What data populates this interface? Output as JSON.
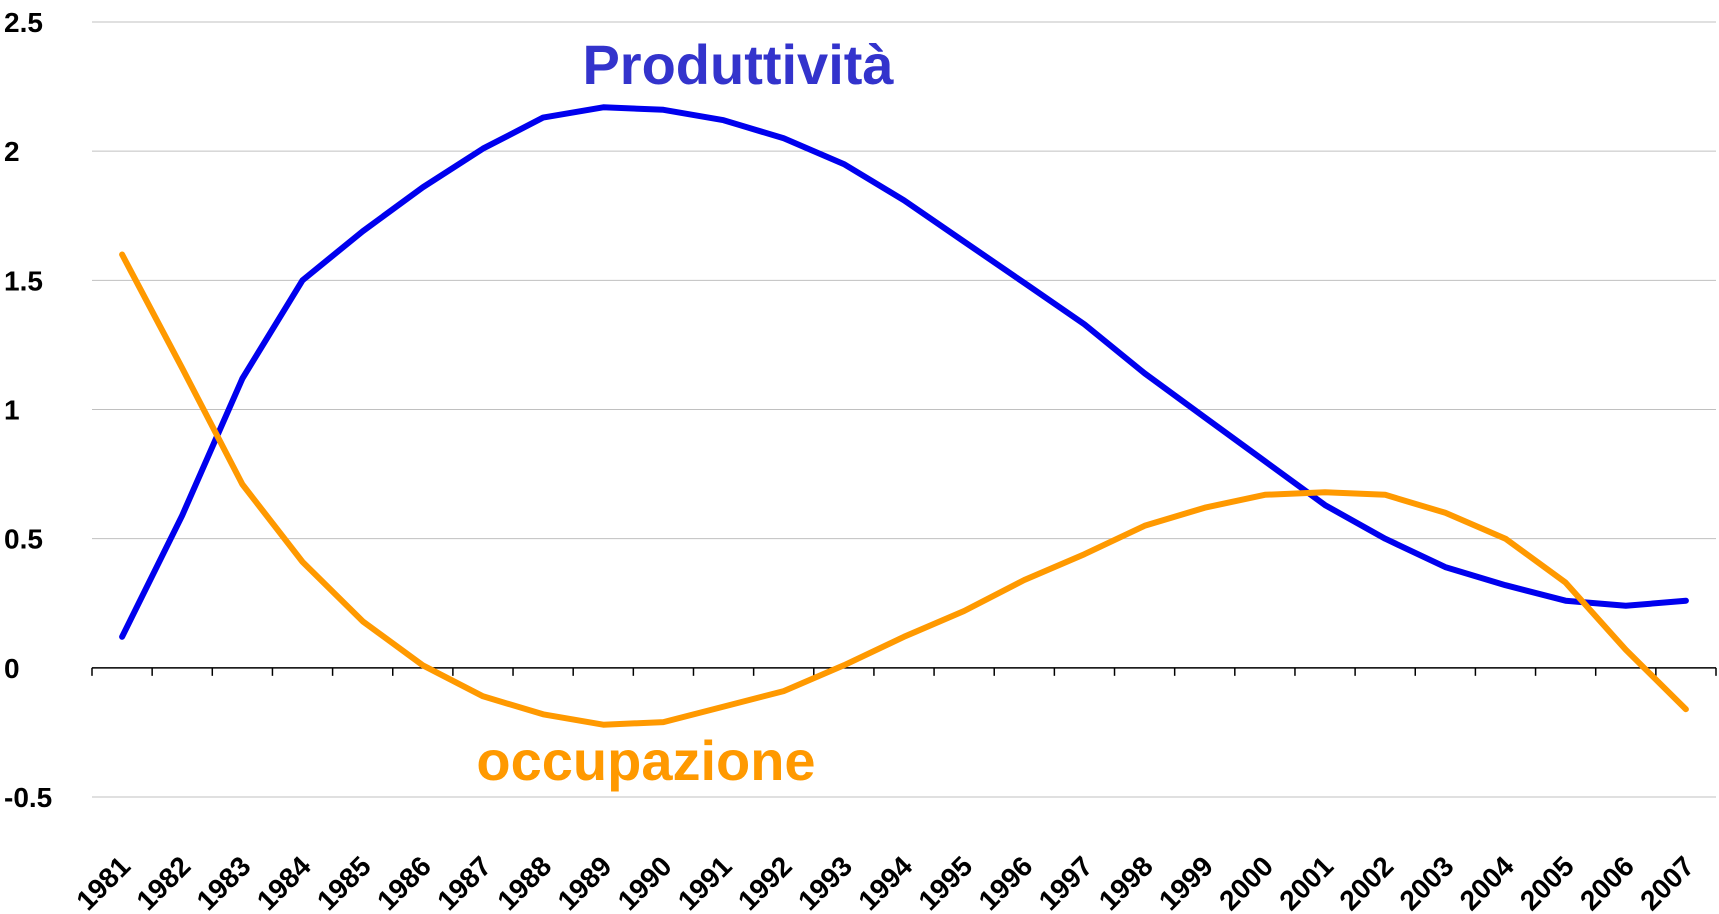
{
  "chart_data": {
    "type": "line",
    "categories": [
      "1981",
      "1982",
      "1983",
      "1984",
      "1985",
      "1986",
      "1987",
      "1988",
      "1989",
      "1990",
      "1991",
      "1992",
      "1993",
      "1994",
      "1995",
      "1996",
      "1997",
      "1998",
      "1999",
      "2000",
      "2001",
      "2002",
      "2003",
      "2004",
      "2005",
      "2006",
      "2007"
    ],
    "series": [
      {
        "name": "Produttività",
        "color": "#0000ee",
        "values": [
          0.12,
          0.59,
          1.12,
          1.5,
          1.69,
          1.86,
          2.01,
          2.13,
          2.17,
          2.16,
          2.12,
          2.05,
          1.95,
          1.81,
          1.65,
          1.49,
          1.33,
          1.14,
          0.97,
          0.8,
          0.63,
          0.5,
          0.39,
          0.32,
          0.26,
          0.24,
          0.26
        ]
      },
      {
        "name": "occupazione",
        "color": "#ff9900",
        "values": [
          1.6,
          1.16,
          0.71,
          0.41,
          0.18,
          0.01,
          -0.11,
          -0.18,
          -0.22,
          -0.21,
          -0.15,
          -0.09,
          0.01,
          0.12,
          0.22,
          0.34,
          0.44,
          0.55,
          0.62,
          0.67,
          0.68,
          0.67,
          0.6,
          0.5,
          0.33,
          0.07,
          -0.16
        ]
      }
    ],
    "ylim": [
      -0.5,
      2.5
    ],
    "yticks": [
      -0.5,
      0,
      0.5,
      1,
      1.5,
      2,
      2.5
    ],
    "grid": true
  }
}
